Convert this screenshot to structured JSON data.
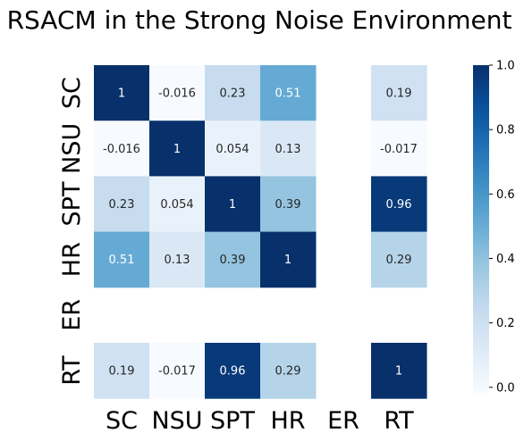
{
  "chart_data": {
    "type": "heatmap",
    "title": "RSACM in the Strong Noise Environment",
    "x_labels": [
      "SC",
      "NSU",
      "SPT",
      "HR",
      "ER",
      "RT"
    ],
    "y_labels": [
      "SC",
      "NSU",
      "SPT",
      "HR",
      "ER",
      "RT"
    ],
    "values": [
      [
        1,
        -0.016,
        0.23,
        0.51,
        null,
        0.19
      ],
      [
        -0.016,
        1,
        0.054,
        0.13,
        null,
        -0.017
      ],
      [
        0.23,
        0.054,
        1,
        0.39,
        null,
        0.96
      ],
      [
        0.51,
        0.13,
        0.39,
        1,
        null,
        0.29
      ],
      [
        null,
        null,
        null,
        null,
        null,
        null
      ],
      [
        0.19,
        -0.017,
        0.96,
        0.29,
        null,
        1
      ]
    ],
    "value_labels": [
      [
        "1",
        "-0.016",
        "0.23",
        "0.51",
        "",
        "0.19"
      ],
      [
        "-0.016",
        "1",
        "0.054",
        "0.13",
        "",
        "-0.017"
      ],
      [
        "0.23",
        "0.054",
        "1",
        "0.39",
        "",
        "0.96"
      ],
      [
        "0.51",
        "0.13",
        "0.39",
        "1",
        "",
        "0.29"
      ],
      [
        "",
        "",
        "",
        "",
        "",
        ""
      ],
      [
        "0.19",
        "-0.017",
        "0.96",
        "0.29",
        "",
        "1"
      ]
    ],
    "colormap": "Blues",
    "vmin": -0.017,
    "vmax": 1,
    "colorbar": {
      "ticks": [
        0.0,
        0.2,
        0.4,
        0.6,
        0.8,
        1.0
      ],
      "tick_labels": [
        "0.0",
        "0.2",
        "0.4",
        "0.6",
        "0.8",
        "1.0"
      ]
    }
  }
}
